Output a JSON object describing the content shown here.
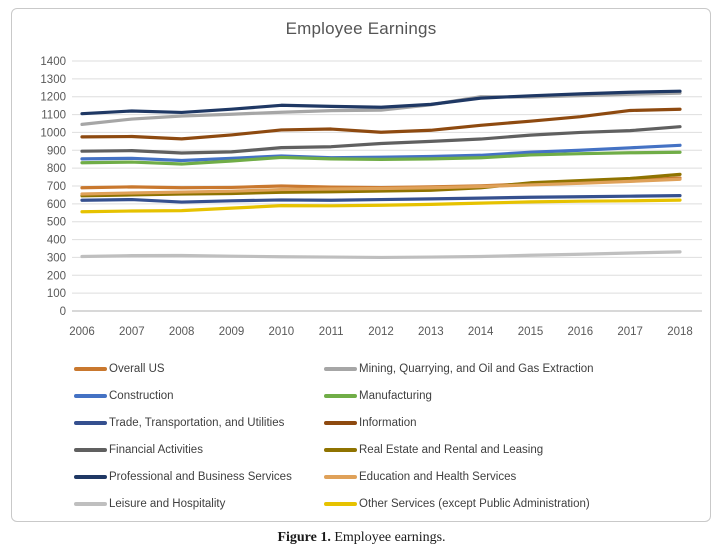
{
  "chart_data": {
    "type": "line",
    "title": "Employee Earnings",
    "xlabel": "",
    "ylabel": "",
    "x": [
      2006,
      2007,
      2008,
      2009,
      2010,
      2011,
      2012,
      2013,
      2014,
      2015,
      2016,
      2017,
      2018
    ],
    "ylim": [
      0,
      1400
    ],
    "yticks": [
      0,
      100,
      200,
      300,
      400,
      500,
      600,
      700,
      800,
      900,
      1000,
      1100,
      1200,
      1300,
      1400
    ],
    "grid": true,
    "legend_position": "bottom",
    "series": [
      {
        "name": "Overall US",
        "color": "#c9782e",
        "values": [
          690,
          695,
          690,
          692,
          700,
          694,
          691,
          695,
          701,
          712,
          720,
          731,
          745
        ]
      },
      {
        "name": "Mining, Quarrying, and Oil and Gas Extraction",
        "color": "#a6a6a6",
        "values": [
          1045,
          1075,
          1092,
          1102,
          1113,
          1122,
          1125,
          1155,
          1200,
          1198,
          1206,
          1214,
          1220
        ]
      },
      {
        "name": "Construction",
        "color": "#4472c4",
        "values": [
          852,
          855,
          843,
          855,
          868,
          858,
          861,
          865,
          872,
          889,
          900,
          914,
          928
        ]
      },
      {
        "name": "Manufacturing",
        "color": "#70ad47",
        "values": [
          830,
          834,
          823,
          840,
          860,
          852,
          849,
          852,
          858,
          874,
          881,
          886,
          889
        ]
      },
      {
        "name": "Trade, Transportation, and Utilities",
        "color": "#35508f",
        "values": [
          620,
          624,
          610,
          617,
          622,
          620,
          624,
          628,
          632,
          637,
          640,
          643,
          646
        ]
      },
      {
        "name": "Information",
        "color": "#8e4a10",
        "values": [
          975,
          977,
          964,
          986,
          1014,
          1019,
          1001,
          1012,
          1040,
          1063,
          1088,
          1123,
          1130
        ]
      },
      {
        "name": "Financial Activities",
        "color": "#606060",
        "values": [
          895,
          898,
          885,
          891,
          915,
          920,
          938,
          950,
          963,
          985,
          1000,
          1010,
          1032
        ]
      },
      {
        "name": "Real Estate and Rental and Leasing",
        "color": "#8f7300",
        "values": [
          645,
          650,
          655,
          658,
          665,
          668,
          672,
          676,
          690,
          718,
          730,
          742,
          765
        ]
      },
      {
        "name": "Professional and Business Services",
        "color": "#1f3864",
        "values": [
          1105,
          1120,
          1112,
          1130,
          1152,
          1146,
          1141,
          1157,
          1192,
          1205,
          1216,
          1225,
          1231
        ]
      },
      {
        "name": "Education and Health Services",
        "color": "#dfa159",
        "values": [
          655,
          661,
          666,
          671,
          680,
          683,
          686,
          690,
          697,
          706,
          715,
          726,
          738
        ]
      },
      {
        "name": "Leisure and Hospitality",
        "color": "#bfbfbf",
        "values": [
          305,
          310,
          311,
          307,
          304,
          302,
          300,
          302,
          305,
          312,
          318,
          325,
          331
        ]
      },
      {
        "name": "Other Services (except Public Administration)",
        "color": "#e6c200",
        "values": [
          556,
          560,
          562,
          576,
          590,
          589,
          592,
          597,
          604,
          611,
          615,
          617,
          621
        ]
      }
    ]
  },
  "caption": {
    "label": "Figure 1.",
    "text": "Employee earnings."
  },
  "style": {
    "axis_text_color": "#595959",
    "gridline_color": "#dedede",
    "baseline_color": "#b0b0b0",
    "title_color": "#555555"
  }
}
